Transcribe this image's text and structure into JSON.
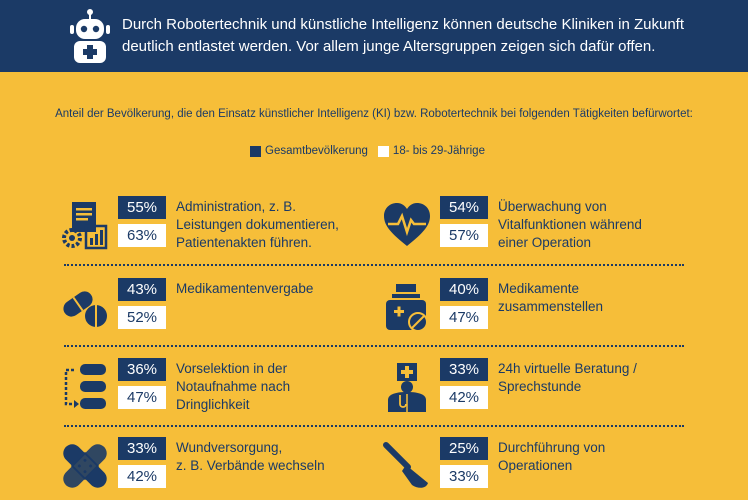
{
  "header": {
    "text": "Durch Robotertechnik und künstliche Intelligenz können deutsche Kliniken in Zukunft deutlich entlastet werden. Vor allem junge Altersgruppen zeigen sich dafür offen."
  },
  "colors": {
    "background": "#F6BE39",
    "navy": "#1B3A66",
    "white": "#FFFFFF"
  },
  "chart_data": {
    "type": "table",
    "title": "Anteil der Bevölkerung, die den Einsatz künstlicher Intelligenz (KI) bzw. Robotertechnik bei folgenden Tätigkeiten befürwortet:",
    "legend": [
      "Gesamtbevölkerung",
      "18- bis 29-Jährige"
    ],
    "legend_placement": "top-center",
    "series": [
      {
        "name": "Gesamtbevölkerung",
        "values": [
          "55%",
          "54%",
          "43%",
          "40%",
          "36%",
          "33%",
          "33%",
          "25%"
        ]
      },
      {
        "name": "18- bis 29-Jährige",
        "values": [
          "63%",
          "57%",
          "52%",
          "47%",
          "47%",
          "42%",
          "42%",
          "33%"
        ]
      }
    ],
    "categories": [
      "Administration, z. B.\nLeistungen dokumentieren,\nPatientenakten führen.",
      "Überwachung von\nVitalfunktionen während\neiner Operation",
      "Medikamentenvergabe",
      "Medikamente\nzusammenstellen",
      "Vorselektion in der\nNotaufnahme nach\nDringlichkeit",
      "24h virtuelle Beratung /\nSprechstunde",
      "Wundversorgung,\nz. B. Verbände wechseln",
      "Durchführung von\nOperationen"
    ],
    "icons": [
      "documents-gear-chart-icon",
      "heart-pulse-icon",
      "pills-icon",
      "medicine-jar-icon",
      "triage-flow-icon",
      "doctor-icon",
      "bandage-icon",
      "scalpel-icon"
    ]
  }
}
